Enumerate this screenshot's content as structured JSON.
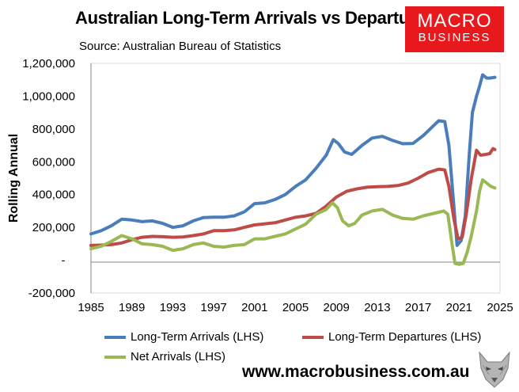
{
  "header": {
    "title": "Australian Long-Term Arrivals vs Departures",
    "source": "Source: Australian Bureau of Statistics"
  },
  "logo": {
    "line1": "MACRO",
    "line2": "BUSINESS"
  },
  "footer": {
    "website": "www.macrobusiness.com.au"
  },
  "colors": {
    "arrivals": "#4a7ebb",
    "departures": "#be4b48",
    "net": "#98b954"
  },
  "chart_data": {
    "type": "line",
    "title": "Australian Long-Term Arrivals vs Departures",
    "xlabel": "",
    "ylabel": "Rolling Annual",
    "xlim": [
      1985,
      2025
    ],
    "ylim": [
      -200000,
      1200000
    ],
    "grid": false,
    "legend_position": "bottom",
    "x_ticks": [
      "1985",
      "1989",
      "1993",
      "1997",
      "2001",
      "2005",
      "2009",
      "2013",
      "2017",
      "2021",
      "2025"
    ],
    "y_ticks": [
      {
        "value": 1200000,
        "label": "1,200,000"
      },
      {
        "value": 1000000,
        "label": "1,000,000"
      },
      {
        "value": 800000,
        "label": "800,000"
      },
      {
        "value": 600000,
        "label": "600,000"
      },
      {
        "value": 400000,
        "label": "400,000"
      },
      {
        "value": 200000,
        "label": "200,000"
      },
      {
        "value": 0,
        "label": "-"
      },
      {
        "value": -200000,
        "label": "-200,000"
      }
    ],
    "series": [
      {
        "name": "Long-Term Arrivals (LHS)",
        "color": "#4a7ebb",
        "points": [
          [
            1985,
            160000
          ],
          [
            1986,
            180000
          ],
          [
            1987,
            210000
          ],
          [
            1988,
            250000
          ],
          [
            1989,
            245000
          ],
          [
            1990,
            235000
          ],
          [
            1991,
            240000
          ],
          [
            1992,
            225000
          ],
          [
            1993,
            200000
          ],
          [
            1994,
            210000
          ],
          [
            1995,
            240000
          ],
          [
            1996,
            260000
          ],
          [
            1997,
            262000
          ],
          [
            1998,
            262000
          ],
          [
            1999,
            270000
          ],
          [
            2000,
            295000
          ],
          [
            2001,
            345000
          ],
          [
            2002,
            350000
          ],
          [
            2003,
            370000
          ],
          [
            2004,
            400000
          ],
          [
            2005,
            450000
          ],
          [
            2006,
            490000
          ],
          [
            2007,
            560000
          ],
          [
            2008,
            640000
          ],
          [
            2008.7,
            735000
          ],
          [
            2009.2,
            710000
          ],
          [
            2009.8,
            660000
          ],
          [
            2010.5,
            645000
          ],
          [
            2011.5,
            700000
          ],
          [
            2012.5,
            745000
          ],
          [
            2013.5,
            755000
          ],
          [
            2014.5,
            730000
          ],
          [
            2015.5,
            710000
          ],
          [
            2016.5,
            712000
          ],
          [
            2017.5,
            760000
          ],
          [
            2018.5,
            820000
          ],
          [
            2019,
            850000
          ],
          [
            2019.6,
            845000
          ],
          [
            2020.0,
            700000
          ],
          [
            2020.4,
            400000
          ],
          [
            2020.8,
            90000
          ],
          [
            2021.2,
            120000
          ],
          [
            2021.6,
            270000
          ],
          [
            2022.0,
            650000
          ],
          [
            2022.3,
            900000
          ],
          [
            2022.7,
            1000000
          ],
          [
            2023.0,
            1060000
          ],
          [
            2023.3,
            1130000
          ],
          [
            2023.7,
            1110000
          ],
          [
            2024.0,
            1110000
          ],
          [
            2024.5,
            1115000
          ]
        ]
      },
      {
        "name": "Long-Term Departures (LHS)",
        "color": "#be4b48",
        "points": [
          [
            1985,
            90000
          ],
          [
            1986,
            92000
          ],
          [
            1987,
            95000
          ],
          [
            1988,
            105000
          ],
          [
            1989,
            125000
          ],
          [
            1990,
            140000
          ],
          [
            1991,
            145000
          ],
          [
            1992,
            143000
          ],
          [
            1993,
            140000
          ],
          [
            1994,
            142000
          ],
          [
            1995,
            150000
          ],
          [
            1996,
            160000
          ],
          [
            1997,
            180000
          ],
          [
            1998,
            180000
          ],
          [
            1999,
            185000
          ],
          [
            2000,
            200000
          ],
          [
            2001,
            215000
          ],
          [
            2002,
            222000
          ],
          [
            2003,
            228000
          ],
          [
            2004,
            245000
          ],
          [
            2005,
            262000
          ],
          [
            2006,
            270000
          ],
          [
            2007,
            285000
          ],
          [
            2008,
            330000
          ],
          [
            2009,
            385000
          ],
          [
            2010,
            420000
          ],
          [
            2011,
            435000
          ],
          [
            2012,
            445000
          ],
          [
            2013,
            448000
          ],
          [
            2014,
            450000
          ],
          [
            2015,
            455000
          ],
          [
            2016,
            470000
          ],
          [
            2017,
            500000
          ],
          [
            2018,
            535000
          ],
          [
            2019,
            555000
          ],
          [
            2019.6,
            550000
          ],
          [
            2020.0,
            450000
          ],
          [
            2020.5,
            250000
          ],
          [
            2020.9,
            130000
          ],
          [
            2021.3,
            140000
          ],
          [
            2021.7,
            280000
          ],
          [
            2022.2,
            500000
          ],
          [
            2022.7,
            670000
          ],
          [
            2023.1,
            640000
          ],
          [
            2023.6,
            645000
          ],
          [
            2024.0,
            650000
          ],
          [
            2024.3,
            680000
          ],
          [
            2024.5,
            675000
          ]
        ]
      },
      {
        "name": "Net Arrivals (LHS)",
        "color": "#98b954",
        "points": [
          [
            1985,
            70000
          ],
          [
            1986,
            85000
          ],
          [
            1987,
            115000
          ],
          [
            1988,
            150000
          ],
          [
            1989,
            130000
          ],
          [
            1990,
            100000
          ],
          [
            1991,
            95000
          ],
          [
            1992,
            85000
          ],
          [
            1993,
            60000
          ],
          [
            1994,
            70000
          ],
          [
            1995,
            95000
          ],
          [
            1996,
            105000
          ],
          [
            1997,
            85000
          ],
          [
            1998,
            80000
          ],
          [
            1999,
            90000
          ],
          [
            2000,
            95000
          ],
          [
            2001,
            130000
          ],
          [
            2002,
            130000
          ],
          [
            2003,
            145000
          ],
          [
            2004,
            160000
          ],
          [
            2005,
            190000
          ],
          [
            2006,
            220000
          ],
          [
            2007,
            280000
          ],
          [
            2008,
            310000
          ],
          [
            2008.6,
            350000
          ],
          [
            2009.1,
            320000
          ],
          [
            2009.6,
            240000
          ],
          [
            2010.2,
            210000
          ],
          [
            2010.8,
            225000
          ],
          [
            2011.5,
            275000
          ],
          [
            2012.5,
            300000
          ],
          [
            2013.5,
            310000
          ],
          [
            2014.5,
            275000
          ],
          [
            2015.5,
            255000
          ],
          [
            2016.5,
            250000
          ],
          [
            2017.5,
            270000
          ],
          [
            2018.5,
            285000
          ],
          [
            2019.5,
            300000
          ],
          [
            2019.9,
            280000
          ],
          [
            2020.3,
            100000
          ],
          [
            2020.6,
            -20000
          ],
          [
            2021.0,
            -25000
          ],
          [
            2021.4,
            -20000
          ],
          [
            2021.8,
            50000
          ],
          [
            2022.2,
            150000
          ],
          [
            2022.7,
            300000
          ],
          [
            2023.0,
            420000
          ],
          [
            2023.3,
            490000
          ],
          [
            2023.7,
            470000
          ],
          [
            2024.1,
            450000
          ],
          [
            2024.5,
            440000
          ]
        ]
      }
    ]
  }
}
